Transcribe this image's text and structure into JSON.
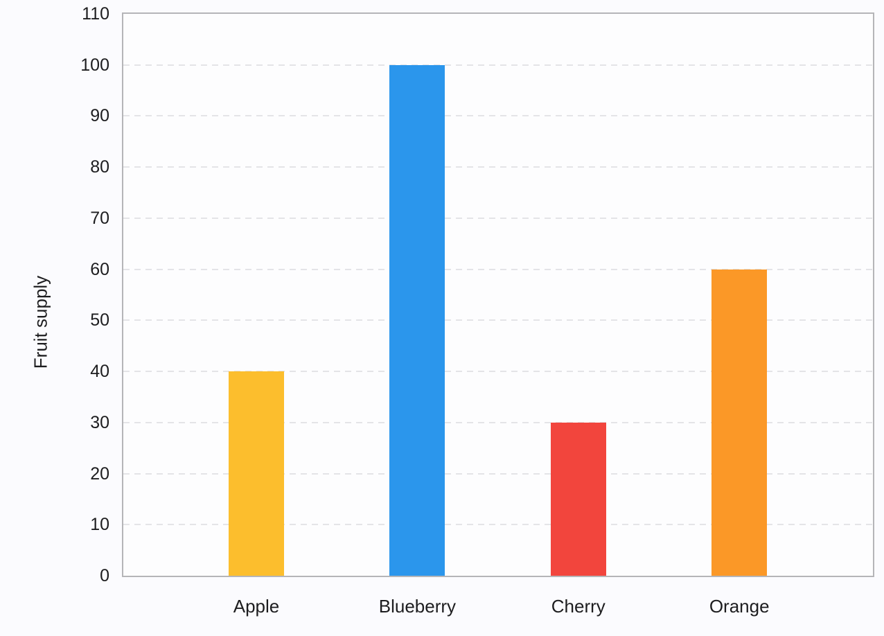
{
  "chart_data": {
    "type": "bar",
    "title": "",
    "categories": [
      "Apple",
      "Blueberry",
      "Cherry",
      "Orange"
    ],
    "values": [
      40,
      100,
      30,
      60
    ],
    "bar_colors": [
      "#fcbe2d",
      "#2b96ec",
      "#f2453d",
      "#fb9827"
    ],
    "xlabel": "",
    "ylabel": "Fruit supply",
    "ylim": [
      0,
      110
    ],
    "yticks": [
      0,
      10,
      20,
      30,
      40,
      50,
      60,
      70,
      80,
      90,
      100,
      110
    ],
    "grid": "horizontal-dashed",
    "legend": "none"
  },
  "colors": {
    "page_background": "#fbfbfe",
    "plot_background": "#fdfdfe",
    "frame": "#b5b5b8",
    "gridline": "#e4e4e7",
    "text": "#1d1d1f"
  }
}
